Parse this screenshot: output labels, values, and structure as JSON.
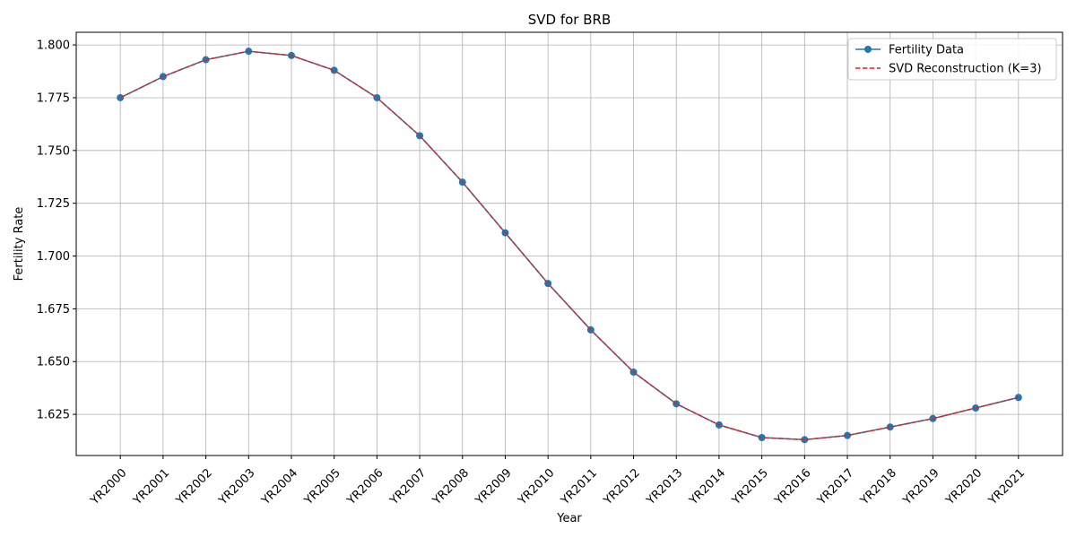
{
  "chart_data": {
    "type": "line",
    "title": "SVD for BRB",
    "xlabel": "Year",
    "ylabel": "Fertility Rate",
    "categories": [
      "YR2000",
      "YR2001",
      "YR2002",
      "YR2003",
      "YR2004",
      "YR2005",
      "YR2006",
      "YR2007",
      "YR2008",
      "YR2009",
      "YR2010",
      "YR2011",
      "YR2012",
      "YR2013",
      "YR2014",
      "YR2015",
      "YR2016",
      "YR2017",
      "YR2018",
      "YR2019",
      "YR2020",
      "YR2021"
    ],
    "ylim": [
      1.6055,
      1.806
    ],
    "yticks": [
      "1.625",
      "1.650",
      "1.675",
      "1.700",
      "1.725",
      "1.750",
      "1.775",
      "1.800"
    ],
    "grid": true,
    "legend_position": "top-right",
    "series": [
      {
        "name": "Fertility Data",
        "style": "solid-markers",
        "color": "#1f77b4",
        "values": [
          1.775,
          1.785,
          1.793,
          1.797,
          1.795,
          1.788,
          1.775,
          1.757,
          1.735,
          1.711,
          1.687,
          1.665,
          1.645,
          1.63,
          1.62,
          1.614,
          1.613,
          1.615,
          1.619,
          1.623,
          1.628,
          1.633
        ]
      },
      {
        "name": "SVD Reconstruction (K=3)",
        "style": "dashed",
        "color": "#d62728",
        "values": [
          1.775,
          1.785,
          1.793,
          1.797,
          1.795,
          1.788,
          1.775,
          1.757,
          1.735,
          1.711,
          1.687,
          1.665,
          1.645,
          1.63,
          1.62,
          1.614,
          1.613,
          1.615,
          1.619,
          1.623,
          1.628,
          1.633
        ]
      }
    ]
  }
}
